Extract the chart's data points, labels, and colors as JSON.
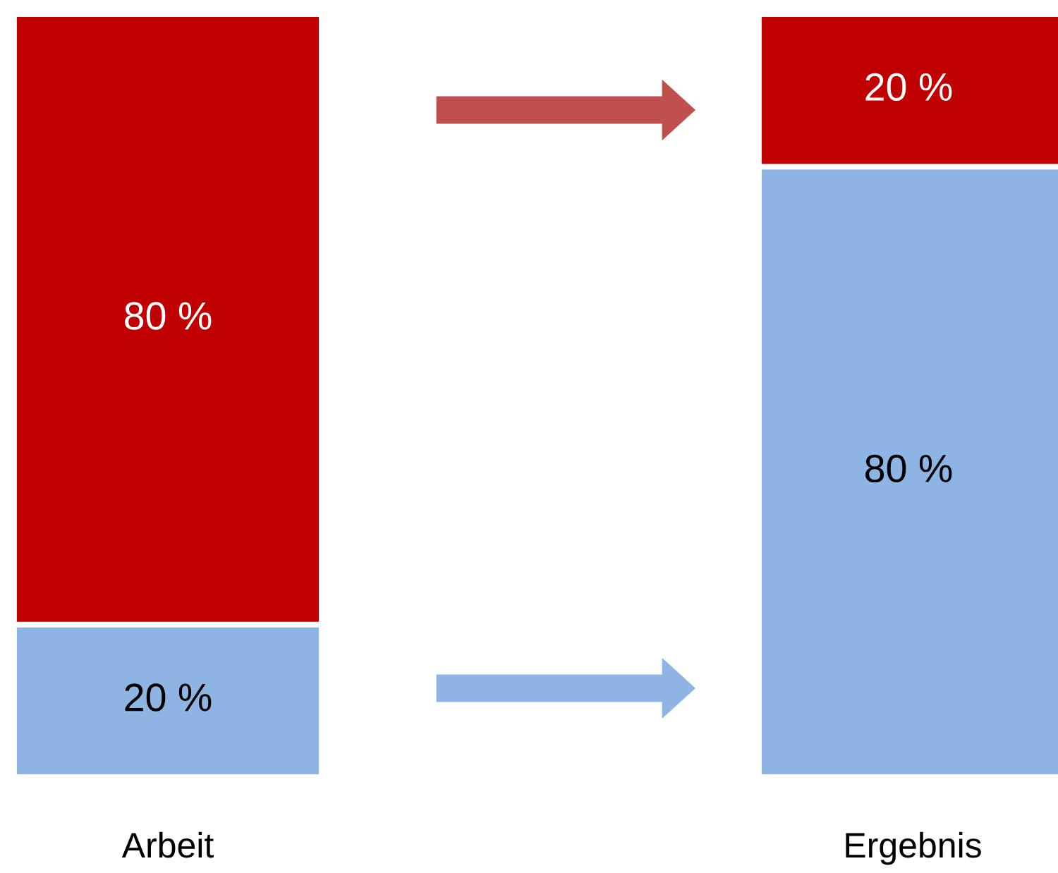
{
  "chart_data": {
    "type": "bar",
    "stacked": true,
    "categories": [
      "Arbeit",
      "Ergebnis"
    ],
    "series": [
      {
        "color": "#8eb4e3",
        "values": [
          20,
          80
        ],
        "value_labels": [
          "20 %",
          "80 %"
        ]
      },
      {
        "color": "#c00000",
        "values": [
          80,
          20
        ],
        "value_labels": [
          "80 %",
          "20 %"
        ]
      }
    ]
  }
}
